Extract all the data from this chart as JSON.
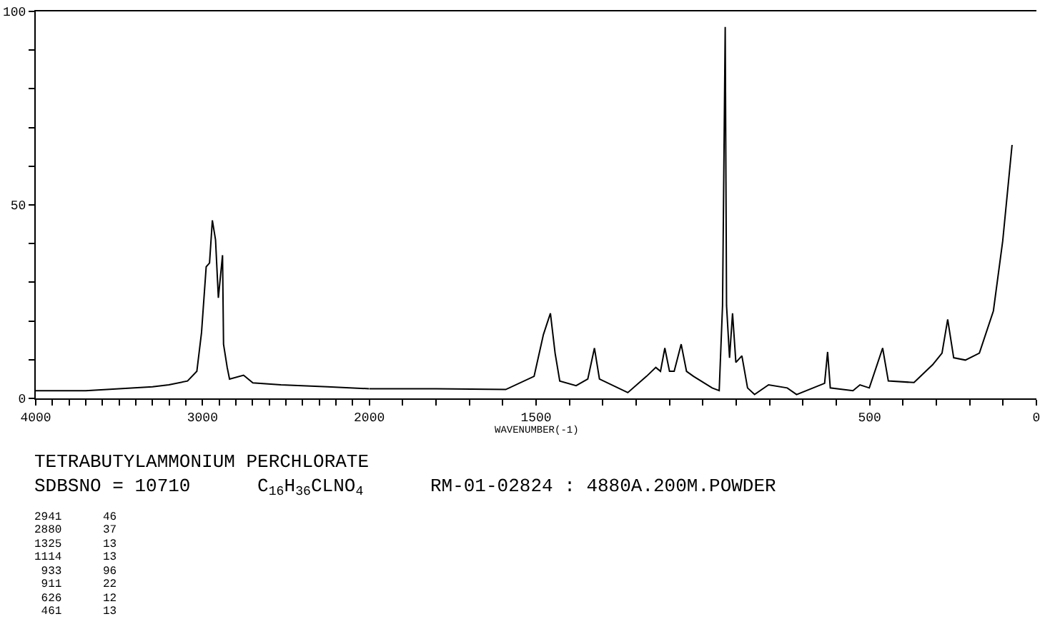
{
  "chart_data": [
    {
      "type": "line",
      "title": "TETRABUTYLAMMONIUM PERCHLORATE",
      "subtitle": "SDBSNO = 10710      C$_{16}$H$_{36}$CLNO$_{4}$      RM-01-02824 : 4880A.200M.POWDER",
      "annotations": [
        "2941      46",
        "2880      37",
        "1325      13",
        "1114      13",
        " 933      96",
        " 911      22",
        " 626      12",
        " 461      13"
      ],
      "series": [
        {
          "color": "#000000",
          "x": [
            4000,
            3700,
            3500,
            3300,
            3202,
            3090,
            3034,
            3006,
            2978,
            2958,
            2941,
            2922,
            2905,
            2880,
            2874,
            2852,
            2838,
            2754,
            2698,
            2530,
            2250,
            2000
          ],
          "values": [
            2,
            2,
            2.5,
            3,
            3.5,
            4.5,
            7,
            17,
            34,
            35,
            46,
            41,
            26,
            37,
            14,
            8,
            5,
            6,
            4,
            3.5,
            3,
            2.5
          ]
        }
      ],
      "xlim": [
        4000,
        2000
      ],
      "xticks": [
        4000,
        {
          "value": 3900,
          "label": null
        },
        {
          "value": 3800,
          "label": null
        },
        {
          "value": 3700,
          "label": null
        },
        {
          "value": 3600,
          "label": null
        },
        {
          "value": 3500,
          "label": null
        },
        {
          "value": 3400,
          "label": null
        },
        {
          "value": 3300,
          "label": null
        },
        {
          "value": 3200,
          "label": null
        },
        {
          "value": 3100,
          "label": null
        },
        3000,
        {
          "value": 2900,
          "label": null
        },
        {
          "value": 2800,
          "label": null
        },
        {
          "value": 2700,
          "label": null
        },
        {
          "value": 2600,
          "label": null
        },
        {
          "value": 2500,
          "label": null
        },
        {
          "value": 2400,
          "label": null
        },
        {
          "value": 2300,
          "label": null
        },
        {
          "value": 2200,
          "label": null
        },
        {
          "value": 2100,
          "label": null
        },
        2000
      ],
      "ylim": [
        0,
        100
      ],
      "yticks": [
        0,
        {
          "value": 10,
          "label": null
        },
        {
          "value": 20,
          "label": null
        },
        {
          "value": 30,
          "label": null
        },
        {
          "value": 40,
          "label": null
        },
        50,
        {
          "value": 60,
          "label": null
        },
        {
          "value": 70,
          "label": null
        },
        {
          "value": 80,
          "label": null
        },
        {
          "value": 90,
          "label": null
        },
        100
      ],
      "marker": "none",
      "line_style": "solid"
    },
    {
      "type": "line",
      "xlabel": "WAVENUMBER(-1)",
      "series": [
        {
          "color": "#000000",
          "x": [
            2000,
            1800,
            1591,
            1506,
            1478,
            1457,
            1443,
            1429,
            1380,
            1345,
            1325,
            1310,
            1225,
            1169,
            1141,
            1127,
            1114,
            1100,
            1086,
            1065,
            1049,
            1028,
            972,
            951,
            941,
            933,
            929,
            920,
            911,
            901,
            883,
            866,
            845,
            803,
            747,
            719,
            635,
            626,
            618,
            550,
            529,
            501,
            461,
            444,
            367,
            311,
            283,
            266,
            248,
            213,
            171,
            129,
            101,
            73
          ],
          "values": [
            2.5,
            2.5,
            2.3,
            5.7,
            16.5,
            22,
            11.7,
            4.5,
            3.3,
            5,
            13,
            5,
            1.5,
            5.7,
            8,
            7,
            13,
            7,
            7,
            14,
            7,
            5.7,
            2.7,
            2,
            24,
            96,
            24,
            10.5,
            22,
            9.3,
            11,
            2.7,
            1,
            3.5,
            2.7,
            1,
            3.9,
            12,
            2.7,
            2,
            3.5,
            2.7,
            13,
            4.5,
            4.1,
            8.7,
            11.7,
            20.4,
            10.5,
            9.9,
            11.7,
            22.6,
            40.7,
            65.5
          ]
        }
      ],
      "xlim": [
        2000,
        0
      ],
      "xticks": [
        {
          "value": 1900,
          "label": null
        },
        {
          "value": 1800,
          "label": null
        },
        {
          "value": 1700,
          "label": null
        },
        {
          "value": 1600,
          "label": null
        },
        1500,
        {
          "value": 1400,
          "label": null
        },
        {
          "value": 1300,
          "label": null
        },
        {
          "value": 1200,
          "label": null
        },
        {
          "value": 1100,
          "label": null
        },
        {
          "value": 1000,
          "label": null
        },
        {
          "value": 900,
          "label": null
        },
        {
          "value": 800,
          "label": null
        },
        {
          "value": 700,
          "label": null
        },
        {
          "value": 600,
          "label": null
        },
        500,
        {
          "value": 400,
          "label": null
        },
        {
          "value": 300,
          "label": null
        },
        {
          "value": 200,
          "label": null
        },
        {
          "value": 100,
          "label": null
        },
        0
      ],
      "ylim": [
        0,
        100
      ],
      "tick_labels": "x",
      "marker": "none",
      "line_style": "solid"
    }
  ]
}
